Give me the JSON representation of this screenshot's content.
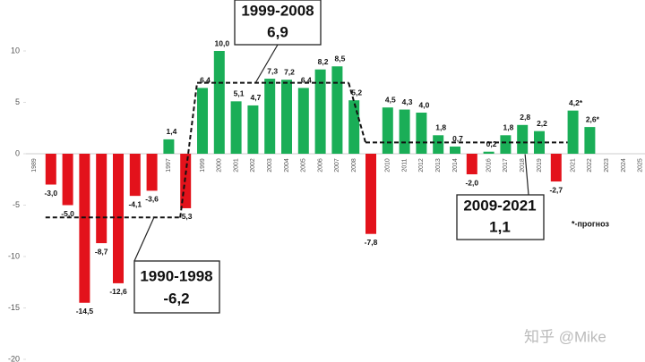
{
  "chart_data": {
    "type": "bar",
    "categories": [
      "1989",
      null,
      null,
      null,
      null,
      null,
      null,
      null,
      "1997",
      null,
      "1999",
      "2000",
      "2001",
      "2002",
      "2003",
      "2004",
      "2005",
      "2006",
      "2007",
      "2008",
      null,
      "2010",
      "2011",
      "2012",
      "2013",
      "2014",
      null,
      "2016",
      "2017",
      "2018",
      "2019",
      null,
      "2021",
      "2022",
      "2023",
      "2024",
      "2025"
    ],
    "values": [
      null,
      -3.0,
      -5.0,
      -14.5,
      -8.7,
      -12.6,
      -4.1,
      -3.6,
      1.4,
      -5.3,
      6.4,
      10.0,
      5.1,
      4.7,
      7.3,
      7.2,
      6.4,
      8.2,
      8.5,
      5.2,
      -7.8,
      4.5,
      4.3,
      4.0,
      1.8,
      0.7,
      -2.0,
      0.2,
      1.8,
      2.8,
      2.2,
      -2.7,
      4.2,
      2.6,
      null,
      null,
      null
    ],
    "value_labels": [
      null,
      "-3,0",
      "-5,0",
      "-14,5",
      "-8,7",
      "-12,6",
      "-4,1",
      "-3,6",
      "1,4",
      "-5,3",
      "6,4",
      "10,0",
      "5,1",
      "4,7",
      "7,3",
      "7,2",
      "6,4",
      "8,2",
      "8,5",
      "5,2",
      "-7,8",
      "4,5",
      "4,3",
      "4,0",
      "1,8",
      "0,7",
      "-2,0",
      "0,2",
      "1,8",
      "2,8",
      "2,2",
      "-2,7",
      "4,2*",
      "2,6*",
      null,
      null,
      null
    ],
    "positive_color": "#1aae57",
    "negative_color": "#e3121b",
    "ylim": [
      -20,
      13
    ],
    "yticks": [
      10,
      5,
      0,
      -5,
      -10,
      -15,
      -20
    ],
    "periods": [
      {
        "label": "1990-1998",
        "value": -6.2,
        "value_label": "-6,2",
        "from": 1,
        "to": 9
      },
      {
        "label": "1999-2008",
        "value": 6.9,
        "value_label": "6,9",
        "from": 10,
        "to": 19
      },
      {
        "label": "2009-2021",
        "value": 1.1,
        "value_label": "1,1",
        "from": 20,
        "to": 32
      }
    ],
    "note": "*-прогноз",
    "watermark": "知乎 @Mike"
  }
}
